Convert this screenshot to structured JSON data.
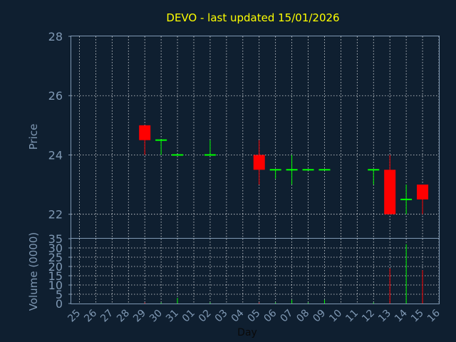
{
  "chart_data": [
    {
      "type": "candlestick",
      "title": "DEVO - last updated 15/01/2026",
      "ylabel": "Price",
      "ylim": [
        21.2,
        28
      ],
      "yticks": [
        22,
        24,
        26,
        28
      ],
      "grid": true,
      "x_ticks": [
        "25",
        "26",
        "27",
        "28",
        "29",
        "30",
        "31",
        "01",
        "02",
        "03",
        "04",
        "05",
        "06",
        "07",
        "08",
        "09",
        "10",
        "11",
        "12",
        "13",
        "14",
        "15",
        "16"
      ],
      "candles": [
        {
          "x": "29",
          "open": 25.0,
          "high": 25.0,
          "low": 24.0,
          "close": 24.5
        },
        {
          "x": "30",
          "open": 24.5,
          "high": 24.5,
          "low": 24.0,
          "close": 24.5
        },
        {
          "x": "31",
          "open": 24.0,
          "high": 24.0,
          "low": 24.0,
          "close": 24.0
        },
        {
          "x": "02",
          "open": 24.0,
          "high": 24.5,
          "low": 24.0,
          "close": 24.0
        },
        {
          "x": "05",
          "open": 24.0,
          "high": 24.5,
          "low": 23.0,
          "close": 23.5
        },
        {
          "x": "06",
          "open": 23.5,
          "high": 23.5,
          "low": 23.2,
          "close": 23.5
        },
        {
          "x": "07",
          "open": 23.5,
          "high": 24.0,
          "low": 23.0,
          "close": 23.5
        },
        {
          "x": "08",
          "open": 23.5,
          "high": 23.5,
          "low": 23.5,
          "close": 23.5
        },
        {
          "x": "09",
          "open": 23.5,
          "high": 23.5,
          "low": 23.5,
          "close": 23.5
        },
        {
          "x": "12",
          "open": 23.5,
          "high": 23.5,
          "low": 23.0,
          "close": 23.5
        },
        {
          "x": "13",
          "open": 23.5,
          "high": 24.0,
          "low": 22.0,
          "close": 22.0
        },
        {
          "x": "14",
          "open": 22.5,
          "high": 23.0,
          "low": 22.0,
          "close": 22.5
        },
        {
          "x": "15",
          "open": 23.0,
          "high": 23.0,
          "low": 22.0,
          "close": 22.5
        }
      ]
    },
    {
      "type": "bar",
      "ylabel": "Volume (0000)",
      "xlabel": "Day",
      "ylim": [
        0,
        35
      ],
      "yticks": [
        0,
        5,
        10,
        15,
        20,
        25,
        30,
        35
      ],
      "grid": true,
      "bars": [
        {
          "x": "29",
          "value": 0.5,
          "dir": "down"
        },
        {
          "x": "30",
          "value": 0.5,
          "dir": "up"
        },
        {
          "x": "31",
          "value": 3,
          "dir": "up"
        },
        {
          "x": "02",
          "value": 0.5,
          "dir": "up"
        },
        {
          "x": "05",
          "value": 0.5,
          "dir": "down"
        },
        {
          "x": "06",
          "value": 0.5,
          "dir": "up"
        },
        {
          "x": "07",
          "value": 2,
          "dir": "up"
        },
        {
          "x": "08",
          "value": 0.5,
          "dir": "up"
        },
        {
          "x": "09",
          "value": 2,
          "dir": "up"
        },
        {
          "x": "12",
          "value": 0.5,
          "dir": "up"
        },
        {
          "x": "13",
          "value": 19,
          "dir": "down"
        },
        {
          "x": "14",
          "value": 32,
          "dir": "up"
        },
        {
          "x": "15",
          "value": 18,
          "dir": "down"
        }
      ]
    }
  ],
  "colors": {
    "background": "#0f1f30",
    "title": "#ffff00",
    "axis_text": "#7f98b3",
    "grid": "#ffffff",
    "up": "#00ff00",
    "down": "#ff0000"
  }
}
